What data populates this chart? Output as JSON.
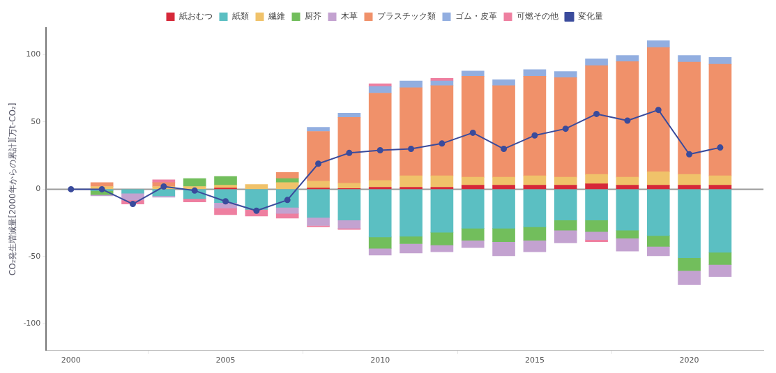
{
  "chart_data": {
    "type": "bar",
    "stacked": true,
    "ylabel": "CO₂発生増減量[2000年からの累計][万t-CO₂]",
    "x": [
      2000,
      2001,
      2002,
      2003,
      2004,
      2005,
      2006,
      2007,
      2008,
      2009,
      2010,
      2011,
      2012,
      2013,
      2014,
      2015,
      2016,
      2017,
      2018,
      2019,
      2020,
      2021
    ],
    "xlim": [
      1999.2,
      2022.4
    ],
    "xticks": [
      2000,
      2005,
      2010,
      2015,
      2020
    ],
    "ylim": [
      -120,
      120
    ],
    "yticks": [
      -100,
      -50,
      0,
      50,
      100
    ],
    "grid": false,
    "legend": "top",
    "ref_lines": [
      {
        "axis": "y",
        "value": 0,
        "color": "#999999"
      }
    ],
    "series": [
      {
        "name": "紙おむつ",
        "color": "#d62839",
        "values": [
          null,
          null,
          null,
          null,
          null,
          1,
          null,
          null,
          1,
          0.5,
          1.5,
          1.5,
          1.5,
          3,
          3,
          3,
          3,
          4,
          3,
          3,
          3,
          3
        ]
      },
      {
        "name": "紙類",
        "color": "#5bbfc2",
        "values": [
          null,
          -1,
          -3,
          -5,
          -7,
          -10,
          -15,
          -13.5,
          -21,
          -23,
          -35.5,
          -35,
          -32,
          -29,
          -29,
          -28,
          -23,
          -23,
          -30.5,
          -34.5,
          -51,
          -47
        ]
      },
      {
        "name": "繊維",
        "color": "#f0c26a",
        "values": [
          null,
          2,
          null,
          2,
          2,
          2,
          3.5,
          5,
          5,
          4,
          5,
          8.5,
          8.5,
          6,
          6,
          7,
          6,
          7,
          6,
          10,
          8,
          7
        ]
      },
      {
        "name": "厨芥",
        "color": "#72be5c",
        "values": [
          null,
          -3,
          null,
          null,
          6,
          6.5,
          null,
          3,
          null,
          null,
          -8.5,
          -5.5,
          -9.5,
          -9,
          -10,
          -10,
          -7.5,
          -8.5,
          -6,
          -8,
          -9.5,
          -9
        ]
      },
      {
        "name": "木草",
        "color": "#c3a2d0",
        "values": [
          null,
          -1,
          -5,
          -1,
          null,
          -4,
          null,
          -4.5,
          -6,
          -6,
          -5,
          -7,
          -5,
          -5.5,
          -10.5,
          -8.5,
          -9.5,
          -6,
          -9.5,
          -7,
          -10.5,
          -9
        ]
      },
      {
        "name": "プラスチック類",
        "color": "#f0916a",
        "values": [
          null,
          3,
          null,
          3,
          null,
          null,
          null,
          4.5,
          37,
          49,
          65,
          65.5,
          67,
          75,
          68,
          74,
          74,
          81,
          86,
          92.5,
          83.5,
          83
        ]
      },
      {
        "name": "ゴム・皮革",
        "color": "#92aee0",
        "values": [
          null,
          null,
          null,
          null,
          null,
          null,
          null,
          null,
          3,
          3,
          5,
          5,
          3.5,
          4,
          4.5,
          5,
          4.5,
          5,
          4.5,
          5,
          5,
          5
        ]
      },
      {
        "name": "可燃その他",
        "color": "#ee7fa0",
        "values": [
          null,
          null,
          -3,
          2,
          -2.5,
          -5,
          -5,
          -3.5,
          -1,
          -1,
          2,
          null,
          2,
          null,
          null,
          null,
          null,
          -1.5,
          null,
          null,
          null,
          null
        ]
      },
      {
        "name": "変化量",
        "type": "line",
        "color": "#3a4b9c",
        "marker": "circle",
        "values": [
          0,
          0,
          -11,
          2,
          -1,
          -9,
          -16,
          -8,
          19,
          27,
          29,
          30,
          34,
          42,
          30,
          40,
          45,
          56,
          51,
          59,
          26,
          31
        ]
      }
    ]
  }
}
